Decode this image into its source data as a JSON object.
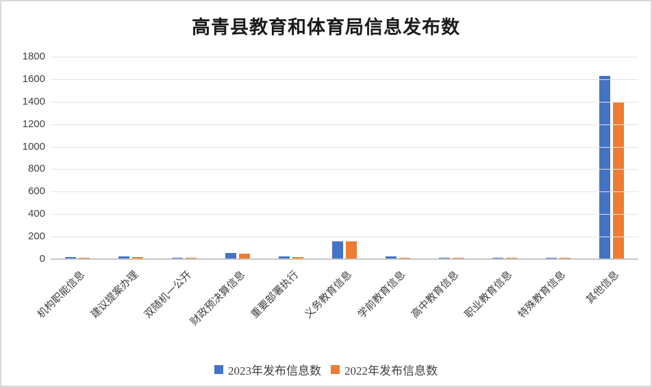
{
  "chart_data": {
    "type": "bar",
    "title": "高青县教育和体育局信息发布数",
    "categories": [
      "机构职能信息",
      "建议提案办理",
      "双随机一公开",
      "财政预决算信息",
      "重要部署执行",
      "义务教育信息",
      "学前教育信息",
      "高中教育信息",
      "职业教育信息",
      "特殊教育信息",
      "其他信息"
    ],
    "series": [
      {
        "name": "2023年发布信息数",
        "color": "#4472C4",
        "values": [
          20,
          22,
          12,
          55,
          25,
          160,
          25,
          15,
          15,
          15,
          1630
        ]
      },
      {
        "name": "2022年发布信息数",
        "color": "#ED7D31",
        "values": [
          12,
          20,
          10,
          50,
          20,
          160,
          12,
          12,
          12,
          12,
          1400
        ]
      }
    ],
    "ylabel": "",
    "xlabel": "",
    "ylim": [
      0,
      1800
    ],
    "ytick_interval": 200,
    "yticks": [
      0,
      200,
      400,
      600,
      800,
      1000,
      1200,
      1400,
      1600,
      1800
    ],
    "grid": true,
    "legend_position": "bottom"
  },
  "colors": {
    "series_2023": "#4472C4",
    "series_2022": "#ED7D31",
    "gridline": "#e2e2e2",
    "axis_line": "#c6c6c6",
    "text": "#3f3f3f",
    "title_text": "#1a1a1a",
    "background": "#ffffff",
    "border": "#d9d9d9"
  }
}
